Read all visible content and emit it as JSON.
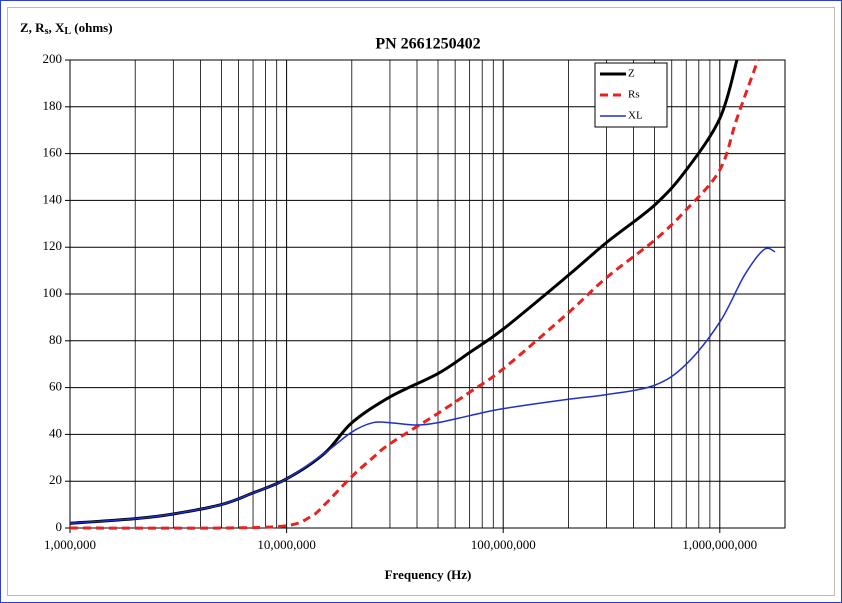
{
  "chart_data": {
    "type": "line",
    "title": "PN 2661250402",
    "y_label": [
      "Z, R",
      "s",
      ", X",
      "L",
      " (ohms)"
    ],
    "x_label": "Frequency (Hz)",
    "x_scale": "log",
    "xlim": [
      1000000,
      2000000000
    ],
    "xticks": [
      {
        "value": 1000000,
        "label": "1,000,000"
      },
      {
        "value": 10000000,
        "label": "10,000,000"
      },
      {
        "value": 100000000,
        "label": "100,000,000"
      },
      {
        "value": 1000000000,
        "label": "1,000,000,000"
      }
    ],
    "xminor": [
      2000000,
      3000000,
      4000000,
      5000000,
      6000000,
      7000000,
      8000000,
      9000000,
      20000000,
      30000000,
      40000000,
      50000000,
      60000000,
      70000000,
      80000000,
      90000000,
      200000000,
      300000000,
      400000000,
      500000000,
      600000000,
      700000000,
      800000000,
      900000000
    ],
    "ylim": [
      0,
      200
    ],
    "yticks": [
      0,
      20,
      40,
      60,
      80,
      100,
      120,
      140,
      160,
      180,
      200
    ],
    "grid": true,
    "legend": "upper right",
    "series": [
      {
        "name": "Z",
        "color": "#000000",
        "style": "solid",
        "width": 3,
        "x": [
          1000000,
          2000000,
          3000000,
          5000000,
          7000000,
          10000000,
          15000000,
          20000000,
          30000000,
          50000000,
          70000000,
          100000000,
          200000000,
          300000000,
          500000000,
          700000000,
          1000000000,
          1200000000
        ],
        "values": [
          2,
          4,
          6,
          10,
          15,
          21,
          32,
          45,
          56,
          66,
          75,
          85,
          108,
          122,
          138,
          153,
          175,
          200
        ]
      },
      {
        "name": "Rs",
        "color": "#e8231f",
        "style": "dashed",
        "width": 3,
        "x": [
          1000000,
          5000000,
          10000000,
          13000000,
          15000000,
          20000000,
          25000000,
          30000000,
          50000000,
          70000000,
          100000000,
          200000000,
          300000000,
          500000000,
          700000000,
          1000000000,
          1200000000,
          1500000000
        ],
        "values": [
          0,
          0,
          1,
          5,
          10,
          22,
          30,
          36,
          49,
          58,
          68,
          92,
          107,
          123,
          136,
          153,
          175,
          200
        ]
      },
      {
        "name": "XL",
        "color": "#1f2fc8",
        "style": "solid",
        "width": 1.5,
        "x": [
          1000000,
          2000000,
          3000000,
          5000000,
          7000000,
          10000000,
          15000000,
          20000000,
          25000000,
          30000000,
          40000000,
          50000000,
          70000000,
          100000000,
          200000000,
          300000000,
          500000000,
          700000000,
          1000000000,
          1300000000,
          1600000000,
          1800000000
        ],
        "values": [
          2,
          4,
          6,
          10,
          15,
          21,
          32,
          41,
          45,
          45,
          44,
          45,
          48,
          51,
          55,
          57,
          61,
          70,
          88,
          108,
          119,
          118
        ]
      }
    ]
  }
}
